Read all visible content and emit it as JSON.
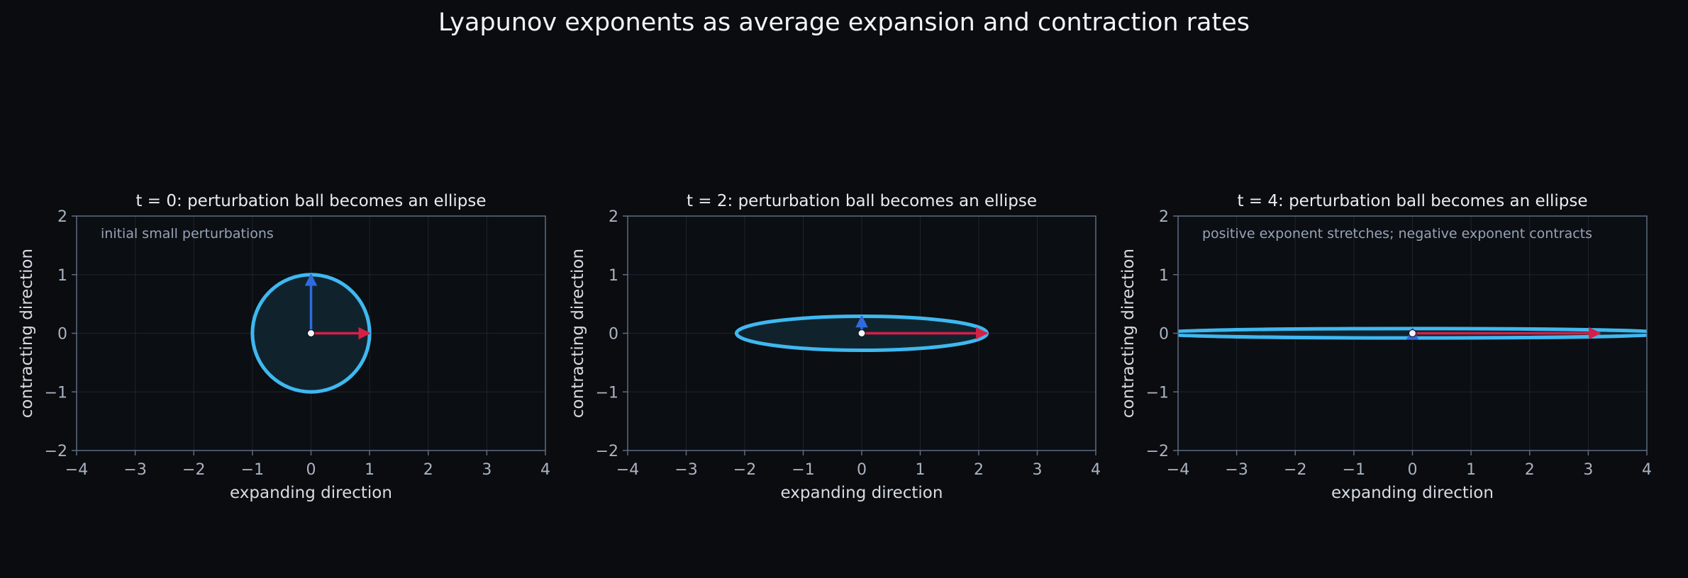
{
  "page": {
    "title": "Lyapunov exponents as average expansion and contraction rates"
  },
  "colors": {
    "background": "#0a0c0f",
    "axes_face": "#0b0e12",
    "spine": "#5d6b83",
    "grid": "#1f252d",
    "ellipse_edge": "#3fb8f0",
    "ellipse_fill": "#10232d",
    "expanding_arrow": "#d42047",
    "contracting_arrow": "#2f6ae0",
    "center_point": "#f2f4f7"
  },
  "chart_data": [
    {
      "type": "scatter",
      "title": "t = 0: perturbation ball becomes an ellipse",
      "xlabel": "expanding direction",
      "ylabel": "contracting direction",
      "xlim": [
        -4,
        4
      ],
      "ylim": [
        -2,
        2
      ],
      "xticks": [
        -4,
        -3,
        -2,
        -1,
        0,
        1,
        2,
        3,
        4
      ],
      "yticks": [
        -2,
        -1,
        0,
        1,
        2
      ],
      "grid": true,
      "annotation": "initial small perturbations",
      "ellipse": {
        "center": [
          0,
          0
        ],
        "semi_axis_x": 1.0,
        "semi_axis_y": 1.0
      },
      "arrows": {
        "expanding": {
          "from": [
            0,
            0
          ],
          "to": [
            1.0,
            0
          ]
        },
        "contracting": {
          "from": [
            0,
            0
          ],
          "to": [
            0,
            1.0
          ]
        }
      },
      "center_point": [
        0,
        0
      ]
    },
    {
      "type": "scatter",
      "title": "t = 2: perturbation ball becomes an ellipse",
      "xlabel": "expanding direction",
      "ylabel": "contracting direction",
      "xlim": [
        -4,
        4
      ],
      "ylim": [
        -2,
        2
      ],
      "xticks": [
        -4,
        -3,
        -2,
        -1,
        0,
        1,
        2,
        3,
        4
      ],
      "yticks": [
        -2,
        -1,
        0,
        1,
        2
      ],
      "grid": true,
      "annotation": "",
      "ellipse": {
        "center": [
          0,
          0
        ],
        "semi_axis_x": 2.14,
        "semi_axis_y": 0.29
      },
      "arrows": {
        "expanding": {
          "from": [
            0,
            0
          ],
          "to": [
            2.14,
            0
          ]
        },
        "contracting": {
          "from": [
            0,
            0
          ],
          "to": [
            0,
            0.29
          ]
        }
      },
      "center_point": [
        0,
        0
      ]
    },
    {
      "type": "scatter",
      "title": "t = 4: perturbation ball becomes an ellipse",
      "xlabel": "expanding direction",
      "ylabel": "contracting direction",
      "xlim": [
        -4,
        4
      ],
      "ylim": [
        -2,
        2
      ],
      "xticks": [
        -4,
        -3,
        -2,
        -1,
        0,
        1,
        2,
        3,
        4
      ],
      "yticks": [
        -2,
        -1,
        0,
        1,
        2
      ],
      "grid": true,
      "annotation": "positive exponent stretches; negative exponent contracts",
      "ellipse": {
        "center": [
          0,
          0
        ],
        "semi_axis_x": 4.5,
        "semi_axis_y": 0.08
      },
      "arrows": {
        "expanding": {
          "from": [
            0,
            0
          ],
          "to": [
            3.2,
            0
          ]
        },
        "contracting": {
          "from": [
            0,
            0
          ],
          "to": [
            0,
            0.08
          ]
        }
      },
      "center_point": [
        0,
        0
      ]
    }
  ]
}
